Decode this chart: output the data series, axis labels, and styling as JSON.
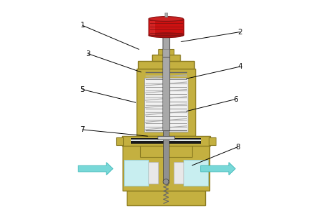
{
  "fig_width": 4.74,
  "fig_height": 3.11,
  "dpi": 100,
  "bg_color": "#ffffff",
  "colors": {
    "olive": "#b8a830",
    "olive_fill": "#c4b040",
    "olive_dark": "#8a7a20",
    "gray_stem": "#a8a8a8",
    "gray_med": "#909090",
    "spring_gray": "#a0a0a0",
    "red_handle": "#cc1111",
    "red_mid": "#bb1111",
    "red_dark": "#881111",
    "light_blue": "#c8eef0",
    "cyan_arrow": "#78d8d8",
    "cyan_arrow_edge": "#44bbbb",
    "black": "#000000",
    "white": "#ffffff",
    "near_black": "#1a1a1a",
    "dark_gray": "#444444",
    "mid_gray": "#888888"
  },
  "annotation_lines": [
    [
      "1",
      [
        0.115,
        0.885
      ],
      [
        0.375,
        0.775
      ]
    ],
    [
      "2",
      [
        0.84,
        0.855
      ],
      [
        0.57,
        0.81
      ]
    ],
    [
      "3",
      [
        0.14,
        0.755
      ],
      [
        0.385,
        0.67
      ]
    ],
    [
      "4",
      [
        0.84,
        0.695
      ],
      [
        0.595,
        0.64
      ]
    ],
    [
      "5",
      [
        0.115,
        0.59
      ],
      [
        0.36,
        0.53
      ]
    ],
    [
      "6",
      [
        0.82,
        0.545
      ],
      [
        0.595,
        0.49
      ]
    ],
    [
      "7",
      [
        0.115,
        0.405
      ],
      [
        0.415,
        0.375
      ]
    ],
    [
      "8",
      [
        0.83,
        0.325
      ],
      [
        0.62,
        0.24
      ]
    ]
  ]
}
